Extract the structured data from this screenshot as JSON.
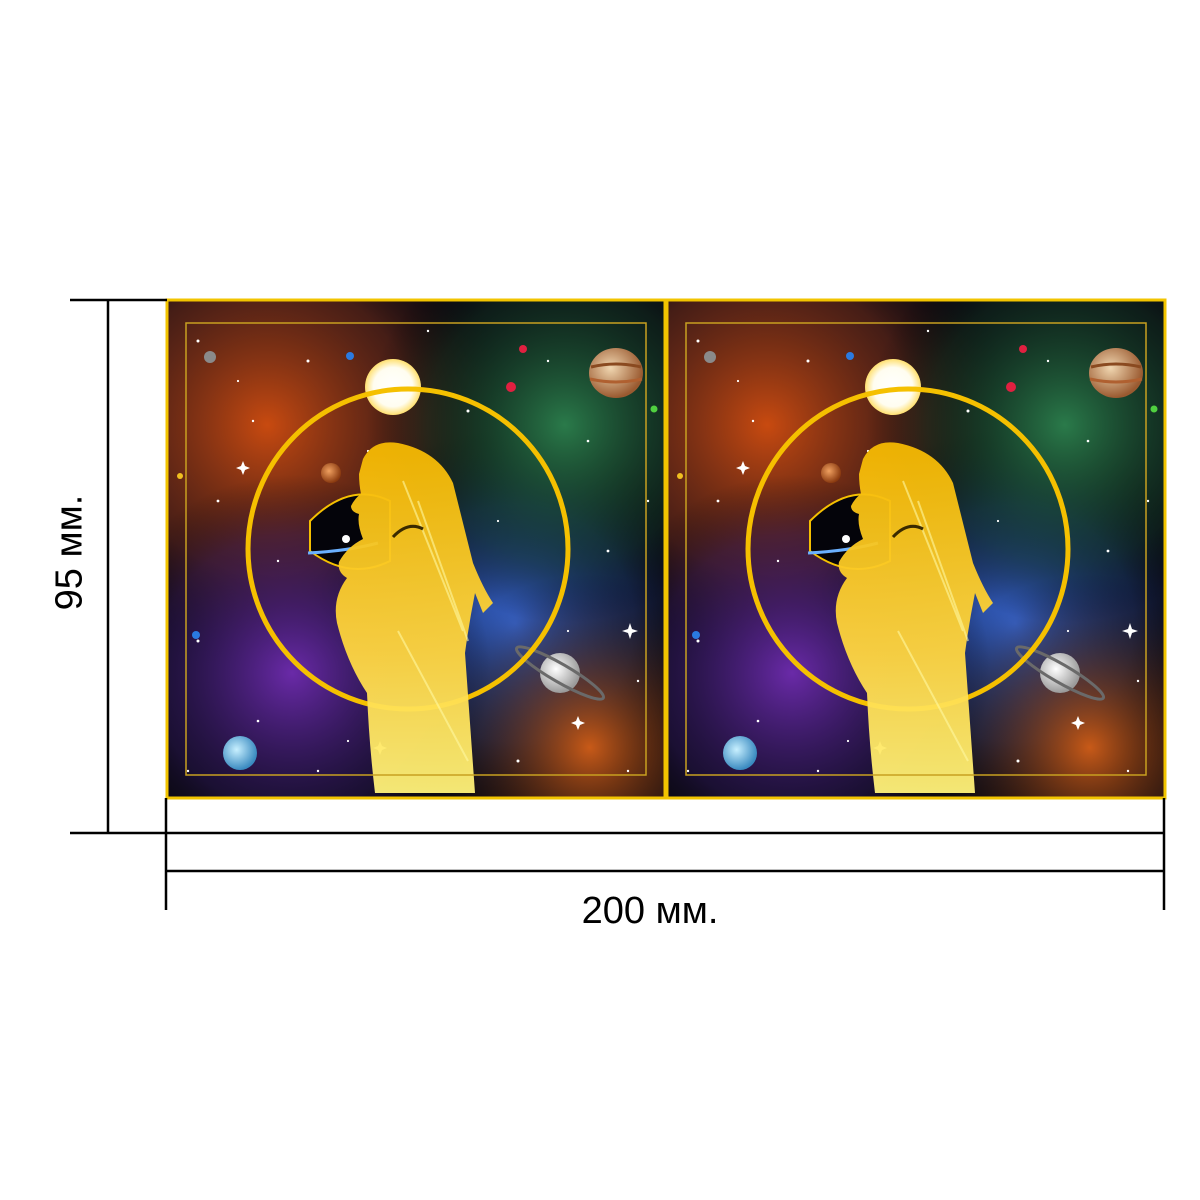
{
  "dimensions": {
    "width_label": "200 мм.",
    "height_label": "95 мм."
  },
  "colors": {
    "frame_gold": "#f2c400",
    "line": "#000000",
    "figure_gold": "#f7c316",
    "halo_gold": "#f5c000"
  },
  "panels": [
    {
      "name": "left-panel"
    },
    {
      "name": "right-panel"
    }
  ]
}
